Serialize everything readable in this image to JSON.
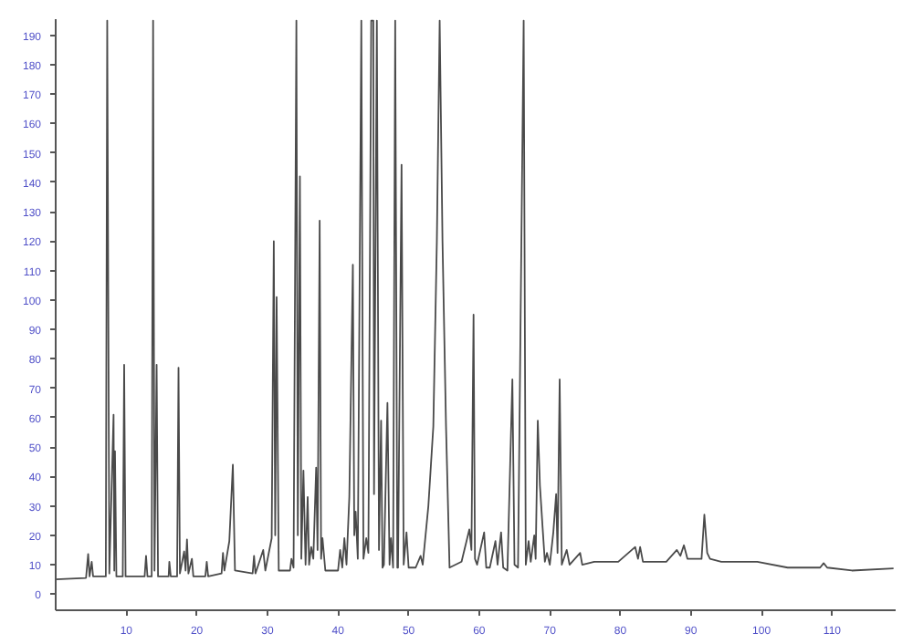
{
  "chart_data": {
    "type": "line",
    "xlim": [
      0,
      119
    ],
    "ylim": [
      -5.5,
      195.5
    ],
    "xticks": [
      10,
      20,
      30,
      40,
      50,
      60,
      70,
      80,
      90,
      100,
      110
    ],
    "yticks": [
      0,
      10,
      20,
      30,
      40,
      50,
      60,
      70,
      80,
      90,
      100,
      110,
      120,
      130,
      140,
      150,
      160,
      170,
      180,
      190
    ],
    "grid": false,
    "series": [
      {
        "color": "#4a4a4a",
        "x": [
          0,
          4.3,
          4.6,
          4.8,
          5.1,
          5.3,
          7.1,
          7.3,
          7.6,
          8.2,
          8.3,
          8.4,
          8.6,
          9.5,
          9.7,
          9.9,
          12.6,
          12.8,
          13.0,
          13.6,
          13.8,
          14.0,
          14.3,
          14.5,
          16.0,
          16.1,
          16.3,
          17.2,
          17.4,
          17.6,
          18.2,
          18.4,
          18.6,
          18.8,
          19.3,
          19.5,
          21.2,
          21.4,
          21.6,
          23.5,
          23.7,
          23.9,
          24.6,
          25.1,
          25.4,
          27.9,
          28.1,
          28.3,
          29.4,
          29.7,
          30.6,
          30.9,
          31.1,
          31.3,
          31.6,
          33.2,
          33.4,
          33.7,
          34.1,
          34.3,
          34.6,
          34.8,
          35.1,
          35.4,
          35.7,
          35.9,
          36.2,
          36.5,
          36.9,
          37.1,
          37.4,
          37.6,
          37.8,
          38.2,
          39.0,
          40.0,
          40.3,
          40.6,
          40.9,
          41.2,
          41.6,
          42.1,
          42.3,
          42.5,
          42.8,
          43.3,
          43.6,
          44.0,
          44.3,
          44.7,
          45.0,
          45.1,
          45.5,
          45.8,
          46.1,
          46.3,
          46.5,
          47.0,
          47.3,
          47.5,
          47.8,
          48.1,
          48.4,
          48.5,
          49.0,
          49.3,
          49.7,
          50.0,
          51.0,
          51.7,
          52.0,
          52.8,
          53.5,
          54.0,
          54.4,
          54.8,
          55.3,
          55.8,
          57.5,
          58.6,
          58.9,
          59.2,
          59.4,
          59.7,
          60.7,
          61.0,
          61.5,
          62.3,
          62.6,
          63.1,
          63.4,
          64.0,
          64.7,
          65.0,
          65.5,
          66.3,
          66.6,
          67.0,
          67.3,
          67.8,
          68.0,
          68.3,
          68.6,
          69.0,
          69.3,
          69.6,
          70.0,
          70.5,
          70.9,
          71.1,
          71.4,
          71.7,
          72.4,
          72.8,
          74.3,
          74.6,
          76.3,
          79.7,
          82.1,
          82.5,
          82.8,
          83.2,
          83.9,
          86.5,
          88.0,
          88.5,
          89.0,
          89.5,
          91.5,
          91.9,
          92.3,
          92.7,
          94.3,
          99.4,
          103.7,
          108.3,
          108.8,
          109.3,
          112.8,
          118.7
        ],
        "values": [
          5,
          5.5,
          13.6,
          6,
          11,
          6,
          6,
          195,
          7,
          61,
          8,
          48.6,
          6,
          6,
          78,
          6,
          6,
          13,
          6,
          6,
          195,
          8,
          78,
          6,
          6,
          11,
          6,
          6,
          77,
          7,
          14.5,
          8,
          18.6,
          7,
          12,
          6,
          6,
          11,
          6,
          7,
          14,
          8,
          18,
          44,
          8,
          7,
          13,
          7,
          15,
          8,
          19,
          120,
          20,
          101,
          8,
          8,
          12,
          9,
          195,
          20,
          142,
          12,
          42,
          10,
          33,
          10,
          16,
          12,
          43,
          15,
          127,
          12,
          19,
          8,
          8,
          8,
          15,
          9,
          19,
          10,
          33,
          112,
          20,
          28,
          12,
          195,
          12,
          19,
          14,
          195,
          195,
          34,
          195,
          15,
          59,
          9,
          10,
          65,
          10,
          19,
          9,
          195,
          9,
          9,
          146,
          10,
          21,
          9,
          9,
          13,
          10,
          30,
          57,
          120,
          195,
          120,
          57,
          9,
          11,
          22,
          15,
          95,
          12,
          10,
          21,
          9,
          9,
          18,
          10,
          21,
          9,
          8,
          73,
          10,
          9,
          195,
          10,
          18,
          11,
          20,
          12,
          59,
          37,
          22,
          11,
          14,
          10,
          21,
          34,
          14,
          73,
          10,
          15,
          10,
          14,
          10,
          11,
          11,
          16,
          12,
          16,
          11,
          11,
          11,
          15,
          13,
          16.6,
          12,
          12,
          27,
          14,
          12,
          11,
          11,
          9,
          9,
          10.5,
          9,
          8,
          8.7
        ]
      }
    ]
  }
}
